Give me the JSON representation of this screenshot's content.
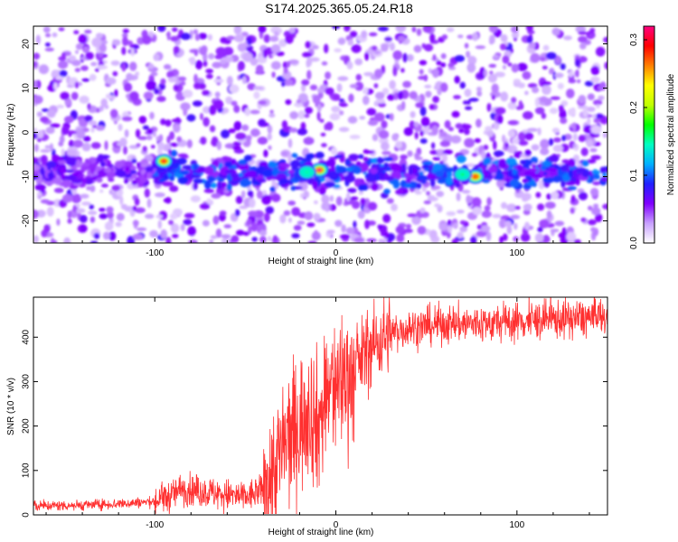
{
  "title": "S174.2025.365.05.24.R18",
  "chart_data": [
    {
      "type": "heatmap",
      "xlabel": "Height of straight line (km)",
      "ylabel": "Frequency (Hz)",
      "xlim": [
        -167,
        150
      ],
      "ylim": [
        -25,
        24
      ],
      "xticks": [
        -100,
        0,
        100
      ],
      "yticks": [
        -20,
        -10,
        0,
        10,
        20
      ],
      "colorbar": {
        "label": "Normalized spectral amplitude",
        "range": [
          0.0,
          0.32
        ],
        "ticks": [
          0.0,
          0.1,
          0.2,
          0.3
        ],
        "colormap": [
          "#ffffff",
          "#c8a0ff",
          "#8000ff",
          "#2020ff",
          "#00b0ff",
          "#00ffc0",
          "#00ff00",
          "#c0ff00",
          "#ffff00",
          "#ff8000",
          "#ff0000",
          "#ff0080"
        ]
      },
      "features": {
        "band_frequency_hz": -9,
        "hotspots": [
          {
            "x": -95,
            "y": -6.5,
            "value": 0.3
          },
          {
            "x": -9,
            "y": -8.5,
            "value": 0.32
          },
          {
            "x": 77,
            "y": -10,
            "value": 0.27
          },
          {
            "x": -16,
            "y": -9,
            "value": 0.15
          },
          {
            "x": 70,
            "y": -9.5,
            "value": 0.16
          }
        ]
      }
    },
    {
      "type": "line",
      "xlabel": "Height of straight line (km)",
      "ylabel": "SNR (10 * v/v)",
      "xlim": [
        -167,
        150
      ],
      "ylim": [
        0,
        490
      ],
      "xticks": [
        -100,
        0,
        100
      ],
      "yticks": [
        0,
        100,
        200,
        300,
        400
      ],
      "series": [
        {
          "color": "#ff3030",
          "x": [
            -167,
            -140,
            -120,
            -100,
            -90,
            -85,
            -80,
            -70,
            -60,
            -50,
            -40,
            -35,
            -30,
            -25,
            -20,
            -15,
            -10,
            -5,
            0,
            5,
            10,
            15,
            20,
            30,
            40,
            50,
            60,
            80,
            100,
            120,
            150
          ],
          "values": [
            20,
            22,
            25,
            30,
            45,
            60,
            55,
            50,
            45,
            40,
            55,
            90,
            140,
            180,
            200,
            250,
            200,
            270,
            290,
            310,
            320,
            360,
            380,
            410,
            420,
            425,
            430,
            430,
            435,
            440,
            445
          ]
        }
      ]
    }
  ]
}
